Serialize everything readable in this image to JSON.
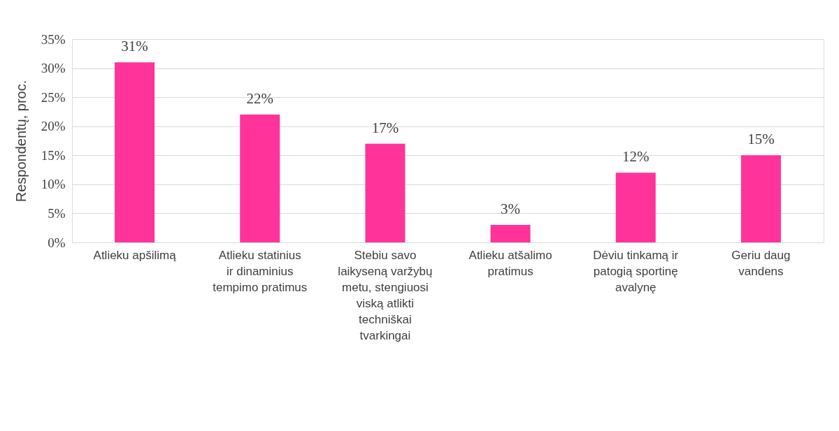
{
  "chart_data": {
    "type": "bar",
    "ylabel": "Respondentų, proc.",
    "categories": [
      "Atlieku apšilimą",
      "Atlieku statinius ir dinaminius tempimo pratimus",
      "Stebiu savo laikyseną varžybų metu, stengiuosi viską atlikti techniškai tvarkingai",
      "Atlieku atšalimo pratimus",
      "Dėviu tinkamą ir patogią sportinę avalynę",
      "Geriu daug vandens"
    ],
    "values": [
      31,
      22,
      17,
      3,
      12,
      15
    ],
    "value_labels": [
      "31%",
      "22%",
      "17%",
      "3%",
      "12%",
      "15%"
    ],
    "color": "#ff3399",
    "ylim": [
      0,
      35
    ],
    "yticks": [
      {
        "value": 0,
        "label": "0%"
      },
      {
        "value": 5,
        "label": "5%"
      },
      {
        "value": 10,
        "label": "10%"
      },
      {
        "value": 15,
        "label": "15%"
      },
      {
        "value": 20,
        "label": "20%"
      },
      {
        "value": 25,
        "label": "25%"
      },
      {
        "value": 30,
        "label": "30%"
      },
      {
        "value": 35,
        "label": "35%"
      }
    ],
    "grid": "y"
  }
}
